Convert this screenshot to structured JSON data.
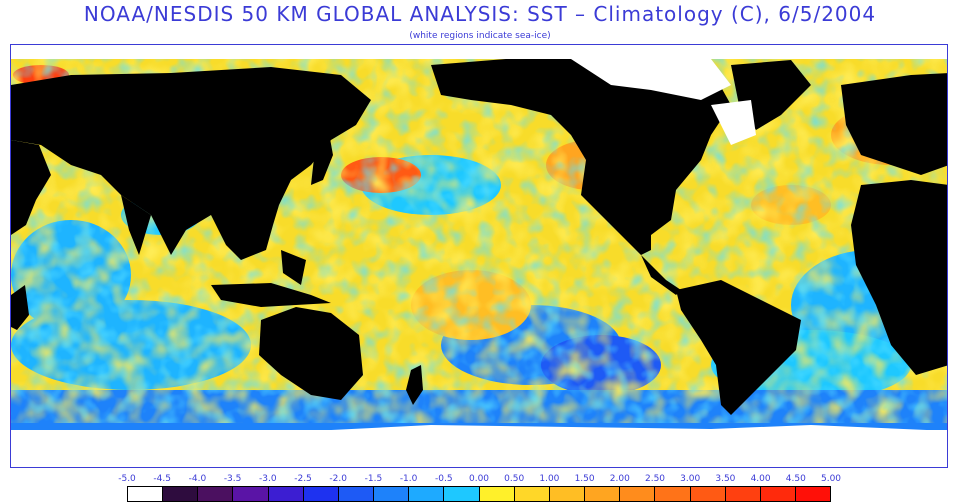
{
  "title": "NOAA/NESDIS 50 KM GLOBAL ANALYSIS: SST – Climatology (C), 6/5/2004",
  "subtitle": "(white regions indicate sea-ice)",
  "colors": {
    "land": "#000000",
    "sea_ice": "#ffffff",
    "text": "#3b3bd6"
  },
  "legend": {
    "ticks": [
      "-5.0",
      "-4.5",
      "-4.0",
      "-3.5",
      "-3.0",
      "-2.5",
      "-2.0",
      "-1.5",
      "-1.0",
      "-0.5",
      "0.00",
      "0.50",
      "1.00",
      "1.50",
      "2.00",
      "2.50",
      "3.00",
      "3.50",
      "4.00",
      "4.50",
      "5.00"
    ],
    "colors": [
      "#ffffff",
      "#2e0c3e",
      "#4b1060",
      "#5a14a6",
      "#3c1ed2",
      "#1e32f0",
      "#1e5af5",
      "#1e82fa",
      "#1eaaff",
      "#1ec8ff",
      "#fff02a",
      "#ffd728",
      "#ffbe24",
      "#ffa520",
      "#ff8c1c",
      "#ff7318",
      "#ff5a14",
      "#ff4010",
      "#ff2a0c",
      "#ff1008"
    ]
  }
}
